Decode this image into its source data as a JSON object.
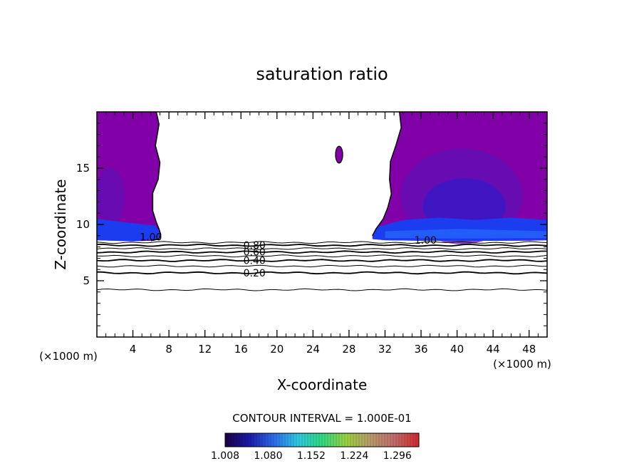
{
  "chart_data": {
    "type": "contour",
    "title": "saturation ratio",
    "xlabel": "X-coordinate",
    "ylabel": "Z-coordinate",
    "x_unit_label_left": "(×1000 m)",
    "x_unit_label_right": "(×1000 m)",
    "xlim": [
      0,
      50
    ],
    "ylim": [
      0,
      20
    ],
    "x_ticks": [
      4,
      8,
      12,
      16,
      20,
      24,
      28,
      32,
      36,
      40,
      44,
      48
    ],
    "x_tick_labels": [
      "4",
      "8",
      "12",
      "16",
      "20",
      "24",
      "28",
      "32",
      "36",
      "40",
      "44",
      "48"
    ],
    "y_ticks": [
      5,
      10,
      15
    ],
    "y_tick_labels": [
      "5",
      "10",
      "15"
    ],
    "contour_interval_text": "CONTOUR INTERVAL = 1.000E-01",
    "contour_lines": [
      {
        "level": 0.1,
        "z": 4.2
      },
      {
        "level": 0.2,
        "z": 5.7
      },
      {
        "level": 0.3,
        "z": 6.3
      },
      {
        "level": 0.4,
        "z": 6.8
      },
      {
        "level": 0.5,
        "z": 7.2
      },
      {
        "level": 0.6,
        "z": 7.55
      },
      {
        "level": 0.7,
        "z": 7.85
      },
      {
        "level": 0.8,
        "z": 8.15
      },
      {
        "level": 0.9,
        "z": 8.4
      }
    ],
    "contour_labels": [
      {
        "text": "0.80",
        "x": 17.5,
        "z": 8.15
      },
      {
        "text": "0.60",
        "x": 17.5,
        "z": 7.55
      },
      {
        "text": "0.40",
        "x": 17.5,
        "z": 6.8
      },
      {
        "text": "0.20",
        "x": 17.5,
        "z": 5.7
      },
      {
        "text": "1.00",
        "x": 6.0,
        "z": 8.9
      },
      {
        "text": "1.00",
        "x": 36.5,
        "z": 8.6
      }
    ],
    "supersaturated_regions": [
      {
        "name": "left",
        "x_range": [
          0,
          8
        ],
        "z_range": [
          8.5,
          20
        ]
      },
      {
        "name": "right",
        "x_range": [
          30.5,
          50
        ],
        "z_range": [
          8.5,
          20
        ]
      },
      {
        "name": "small-cell",
        "x_range": [
          26.5,
          27.3
        ],
        "z_range": [
          15.5,
          17
        ]
      }
    ],
    "colorbar": {
      "min": 1.008,
      "max": 1.332,
      "tick_values": [
        1.008,
        1.08,
        1.152,
        1.224,
        1.296
      ],
      "tick_labels": [
        "1.008",
        "1.080",
        "1.152",
        "1.224",
        "1.296"
      ],
      "colors": [
        "#1a0046",
        "#1a1aa8",
        "#2e6ae8",
        "#2ec8e0",
        "#30d880",
        "#9ad040",
        "#b89a6a",
        "#c06a6a",
        "#d22a2a"
      ]
    },
    "colors": {
      "fill_low": "#8200a8",
      "fill_mid": "#5c10b4",
      "fill_core": "#3a18c6",
      "fill_band": "#1c3cf0",
      "fill_band_light": "#2a78ff"
    }
  }
}
